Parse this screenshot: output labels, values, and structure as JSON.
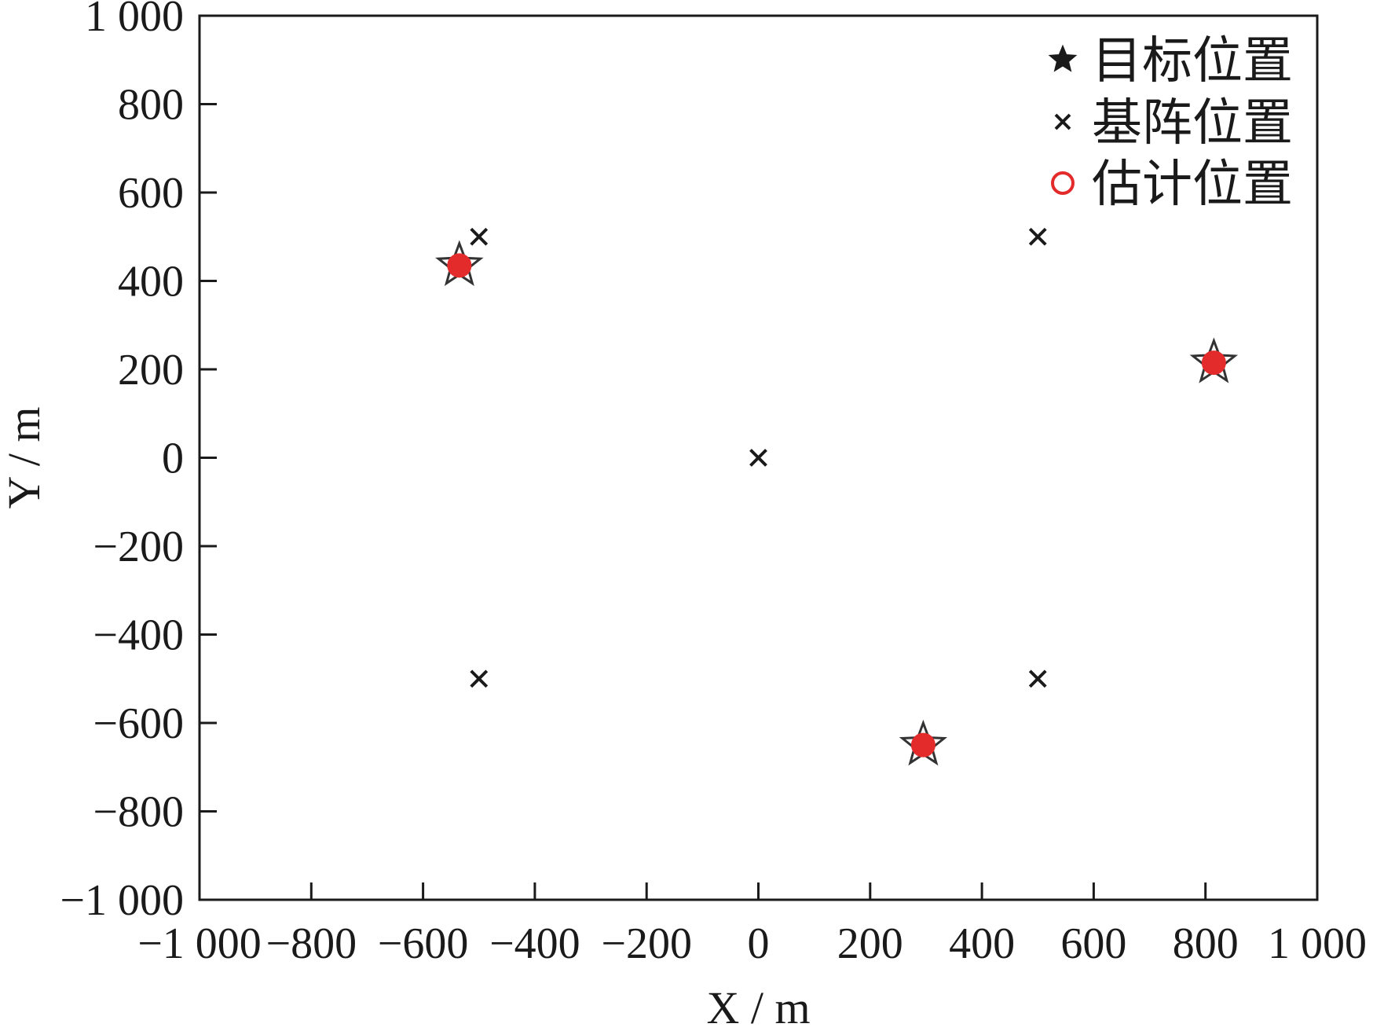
{
  "chart_data": {
    "type": "scatter",
    "title": "",
    "xlabel": "X / m",
    "ylabel": "Y / m",
    "xlim": [
      -1000,
      1000
    ],
    "ylim": [
      -1000,
      1000
    ],
    "xticks": [
      -1000,
      -800,
      -600,
      -400,
      -200,
      0,
      200,
      400,
      600,
      800,
      1000
    ],
    "yticks": [
      -1000,
      -800,
      -600,
      -400,
      -200,
      0,
      200,
      400,
      600,
      800,
      1000
    ],
    "xtick_labels": [
      "−1 000",
      "−800",
      "−600",
      "−400",
      "−200",
      "0",
      "200",
      "400",
      "600",
      "800",
      "1 000"
    ],
    "ytick_labels": [
      "−1 000",
      "−800",
      "−600",
      "−400",
      "−200",
      "0",
      "200",
      "400",
      "600",
      "800",
      "1 000"
    ],
    "grid": false,
    "legend_position": "top-right",
    "series": [
      {
        "name": "目标位置",
        "marker": "star",
        "color": "#1a1a1a",
        "points": [
          [
            -535,
            435
          ],
          [
            295,
            -650
          ],
          [
            815,
            215
          ]
        ]
      },
      {
        "name": "基阵位置",
        "marker": "x",
        "color": "#1a1a1a",
        "points": [
          [
            -500,
            500
          ],
          [
            500,
            500
          ],
          [
            0,
            0
          ],
          [
            -500,
            -500
          ],
          [
            500,
            -500
          ]
        ]
      },
      {
        "name": "估计位置",
        "marker": "circle",
        "color": "#e32b2b",
        "points": [
          [
            -535,
            435
          ],
          [
            295,
            -650
          ],
          [
            815,
            215
          ]
        ]
      }
    ]
  }
}
